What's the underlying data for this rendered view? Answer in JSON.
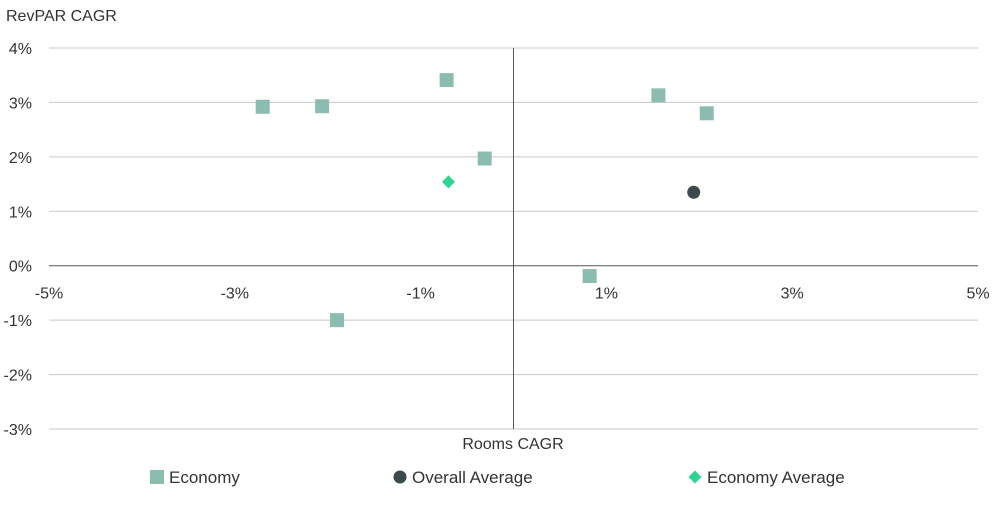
{
  "chart_data": {
    "type": "scatter",
    "ylabel": "RevPAR CAGR",
    "xlabel": "Rooms CAGR",
    "xlim": [
      -5,
      5
    ],
    "ylim": [
      -3,
      4
    ],
    "x_ticks": [
      {
        "value": -5,
        "label": "-5%"
      },
      {
        "value": -3,
        "label": "-3%"
      },
      {
        "value": -1,
        "label": "-1%"
      },
      {
        "value": 1,
        "label": "1%"
      },
      {
        "value": 3,
        "label": "3%"
      },
      {
        "value": 5,
        "label": "5%"
      }
    ],
    "y_ticks": [
      {
        "value": 4,
        "label": "4%"
      },
      {
        "value": 3,
        "label": "3%"
      },
      {
        "value": 2,
        "label": "2%"
      },
      {
        "value": 1,
        "label": "1%"
      },
      {
        "value": 0,
        "label": "0%"
      },
      {
        "value": -1,
        "label": "-1%"
      },
      {
        "value": -2,
        "label": "-2%"
      },
      {
        "value": -3,
        "label": "-3%"
      }
    ],
    "grid": "horizontal",
    "legend_position": "bottom",
    "series": [
      {
        "name": "Economy",
        "marker": "square",
        "color": "#8bbcaf",
        "points": [
          {
            "x": -2.7,
            "y": 2.92
          },
          {
            "x": -2.06,
            "y": 2.93
          },
          {
            "x": -1.9,
            "y": -1.0
          },
          {
            "x": -0.72,
            "y": 3.41
          },
          {
            "x": -0.31,
            "y": 1.97
          },
          {
            "x": 0.82,
            "y": -0.19
          },
          {
            "x": 1.56,
            "y": 3.13
          },
          {
            "x": 2.08,
            "y": 2.8
          }
        ]
      },
      {
        "name": "Overall Average",
        "marker": "circle",
        "color": "#3d4a4d",
        "points": [
          {
            "x": 1.94,
            "y": 1.35
          }
        ]
      },
      {
        "name": "Economy Average",
        "marker": "diamond",
        "color": "#2ed48f",
        "points": [
          {
            "x": -0.7,
            "y": 1.54
          }
        ]
      }
    ]
  }
}
